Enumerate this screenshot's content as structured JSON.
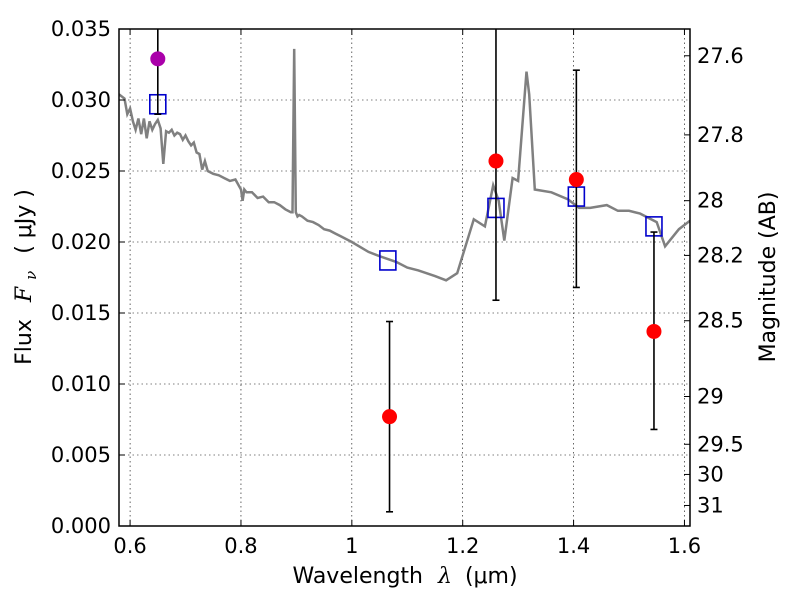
{
  "chart_data": {
    "type": "scatter",
    "title": "",
    "xlabel": "Wavelength",
    "xlabel_symbol": "λ",
    "xlabel_unit": "(μm)",
    "ylabel": "Flux",
    "ylabel_symbol": "F",
    "ylabel_subscript": "ν",
    "ylabel_unit": "( μJy )",
    "y2label": "Magnitude (AB)",
    "xlim": [
      0.58,
      1.61
    ],
    "ylim": [
      0.0,
      0.035
    ],
    "grid": true,
    "x_ticks": [
      {
        "value": 0.6,
        "label": "0.6"
      },
      {
        "value": 0.8,
        "label": "0.8"
      },
      {
        "value": 1.0,
        "label": "1"
      },
      {
        "value": 1.2,
        "label": "1.2"
      },
      {
        "value": 1.4,
        "label": "1.4"
      },
      {
        "value": 1.6,
        "label": "1.6"
      }
    ],
    "y_ticks": [
      {
        "value": 0.0,
        "label": "0.000"
      },
      {
        "value": 0.005,
        "label": "0.005"
      },
      {
        "value": 0.01,
        "label": "0.010"
      },
      {
        "value": 0.015,
        "label": "0.015"
      },
      {
        "value": 0.02,
        "label": "0.020"
      },
      {
        "value": 0.025,
        "label": "0.025"
      },
      {
        "value": 0.03,
        "label": "0.030"
      },
      {
        "value": 0.035,
        "label": "0.035"
      }
    ],
    "y2_ticks": [
      {
        "mag": 27.6,
        "label": "27.6"
      },
      {
        "mag": 27.8,
        "label": "27.8"
      },
      {
        "mag": 28.0,
        "label": "28"
      },
      {
        "mag": 28.2,
        "label": "28.2"
      },
      {
        "mag": 28.5,
        "label": "28.5"
      },
      {
        "mag": 29.0,
        "label": "29"
      },
      {
        "mag": 29.5,
        "label": "29.5"
      },
      {
        "mag": 30.0,
        "label": "30"
      },
      {
        "mag": 31.0,
        "label": "31"
      }
    ],
    "series": [
      {
        "kind": "line",
        "color": "#808080",
        "x": [
          0.58,
          0.59,
          0.595,
          0.6,
          0.605,
          0.61,
          0.615,
          0.62,
          0.625,
          0.63,
          0.635,
          0.64,
          0.645,
          0.65,
          0.655,
          0.66,
          0.665,
          0.67,
          0.675,
          0.68,
          0.685,
          0.69,
          0.695,
          0.7,
          0.705,
          0.71,
          0.715,
          0.72,
          0.725,
          0.73,
          0.735,
          0.74,
          0.75,
          0.76,
          0.77,
          0.78,
          0.79,
          0.8,
          0.803,
          0.806,
          0.81,
          0.82,
          0.83,
          0.84,
          0.85,
          0.86,
          0.87,
          0.88,
          0.89,
          0.893,
          0.896,
          0.899,
          0.902,
          0.905,
          0.91,
          0.92,
          0.93,
          0.94,
          0.95,
          0.96,
          0.97,
          0.98,
          1.0,
          1.03,
          1.05,
          1.08,
          1.1,
          1.12,
          1.15,
          1.17,
          1.19,
          1.22,
          1.24,
          1.255,
          1.265,
          1.275,
          1.29,
          1.3,
          1.315,
          1.32,
          1.33,
          1.36,
          1.39,
          1.41,
          1.43,
          1.46,
          1.48,
          1.5,
          1.52,
          1.55,
          1.565,
          1.59,
          1.61
        ],
        "y": [
          0.0304,
          0.0301,
          0.029,
          0.0294,
          0.0285,
          0.0279,
          0.0287,
          0.0276,
          0.0287,
          0.0273,
          0.0285,
          0.0279,
          0.0283,
          0.0286,
          0.028,
          0.0255,
          0.0278,
          0.0277,
          0.0279,
          0.0275,
          0.0277,
          0.0276,
          0.0272,
          0.0275,
          0.0271,
          0.0268,
          0.027,
          0.0263,
          0.0262,
          0.0251,
          0.0257,
          0.025,
          0.0248,
          0.0247,
          0.0245,
          0.0243,
          0.0244,
          0.0237,
          0.0229,
          0.0237,
          0.0235,
          0.0235,
          0.0231,
          0.0232,
          0.0228,
          0.0228,
          0.0226,
          0.0223,
          0.0221,
          0.0221,
          0.0336,
          0.0221,
          0.0218,
          0.0219,
          0.0218,
          0.0215,
          0.0214,
          0.0212,
          0.0209,
          0.0208,
          0.0206,
          0.0204,
          0.02,
          0.0193,
          0.019,
          0.0186,
          0.0182,
          0.018,
          0.0176,
          0.0173,
          0.0178,
          0.0216,
          0.0211,
          0.024,
          0.0229,
          0.0201,
          0.0245,
          0.0243,
          0.032,
          0.0304,
          0.0237,
          0.0235,
          0.023,
          0.0224,
          0.0224,
          0.0226,
          0.0222,
          0.0222,
          0.022,
          0.0214,
          0.0197,
          0.0209,
          0.0215
        ]
      },
      {
        "kind": "markers",
        "marker": "square",
        "color": "#0000cc",
        "x": [
          0.65,
          1.065,
          1.26,
          1.405,
          1.545
        ],
        "y": [
          0.0297,
          0.0187,
          0.0224,
          0.0232,
          0.0211
        ]
      },
      {
        "kind": "errorbar",
        "marker": "circle",
        "color": "#ff0000",
        "x": [
          1.068,
          1.26,
          1.405,
          1.545
        ],
        "y": [
          0.0077,
          0.0257,
          0.0244,
          0.0137
        ],
        "err_low": [
          0.0067,
          0.0098,
          0.0076,
          0.0069
        ],
        "err_high": [
          0.0067,
          0.012,
          0.0077,
          0.007
        ]
      },
      {
        "kind": "errorbar",
        "marker": "circle",
        "color": "#aa00aa",
        "x": [
          0.65
        ],
        "y": [
          0.0329
        ],
        "err_low": [
          0.0039
        ],
        "err_high": [
          0.0021
        ]
      }
    ]
  }
}
